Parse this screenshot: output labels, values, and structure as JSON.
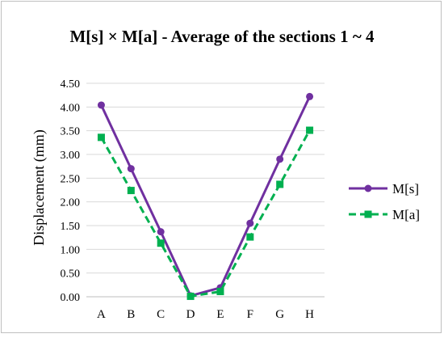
{
  "chart_data": {
    "type": "line",
    "title": "M[s] × M[a] - Average of the sections 1 ~ 4",
    "xlabel": "",
    "ylabel": "Displacement (mm)",
    "categories": [
      "A",
      "B",
      "C",
      "D",
      "E",
      "F",
      "G",
      "H"
    ],
    "ylim": [
      0,
      4.5
    ],
    "yticks": [
      "0.00",
      "0.50",
      "1.00",
      "1.50",
      "2.00",
      "2.50",
      "3.00",
      "3.50",
      "4.00",
      "4.50"
    ],
    "grid": true,
    "legend_position": "right",
    "series": [
      {
        "name": "M[s]",
        "values": [
          4.04,
          2.7,
          1.37,
          0.02,
          0.19,
          1.55,
          2.9,
          4.22
        ],
        "color": "#7030a0",
        "marker": "circle",
        "line_style": "solid"
      },
      {
        "name": "M[a]",
        "values": [
          3.36,
          2.24,
          1.13,
          0.01,
          0.11,
          1.26,
          2.37,
          3.51
        ],
        "color": "#00b050",
        "marker": "square",
        "line_style": "dashed"
      }
    ]
  }
}
